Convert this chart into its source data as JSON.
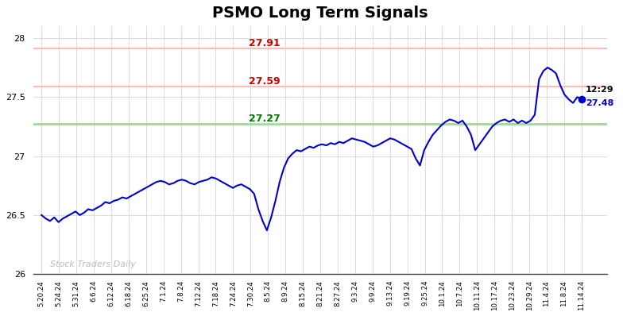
{
  "title": "PSMO Long Term Signals",
  "title_fontsize": 14,
  "title_fontweight": "bold",
  "ylim": [
    26.0,
    28.1
  ],
  "yticks": [
    26,
    26.5,
    27,
    27.5,
    28
  ],
  "hline_red1": 27.91,
  "hline_red2": 27.59,
  "hline_green": 27.27,
  "hline_red1_label": "27.91",
  "hline_red2_label": "27.59",
  "hline_green_label": "27.27",
  "hline_red_color": "#ffbbbb",
  "hline_green_color": "#99dd99",
  "annotation_red_color": "#cc0000",
  "annotation_green_color": "#007700",
  "last_time": "12:29",
  "last_value": "27.48",
  "last_value_color": "#0000cc",
  "watermark": "Stock Traders Daily",
  "watermark_color": "#bbbbbb",
  "line_color": "#0000cc",
  "line_width": 1.5,
  "dot_color": "#0000cc",
  "dot_size": 35,
  "background_color": "#ffffff",
  "grid_color": "#dddddd",
  "x_labels": [
    "5.20.24",
    "5.24.24",
    "5.31.24",
    "6.6.24",
    "6.12.24",
    "6.18.24",
    "6.25.24",
    "7.1.24",
    "7.8.24",
    "7.12.24",
    "7.18.24",
    "7.24.24",
    "7.30.24",
    "8.5.24",
    "8.9.24",
    "8.15.24",
    "8.21.24",
    "8.27.24",
    "9.3.24",
    "9.9.24",
    "9.13.24",
    "9.19.24",
    "9.25.24",
    "10.1.24",
    "10.7.24",
    "10.11.24",
    "10.17.24",
    "10.23.24",
    "10.29.24",
    "11.4.24",
    "11.8.24",
    "11.14.24"
  ],
  "y_data": [
    26.5,
    26.47,
    26.45,
    26.48,
    26.44,
    26.47,
    26.49,
    26.51,
    26.53,
    26.5,
    26.52,
    26.55,
    26.54,
    26.56,
    26.58,
    26.61,
    26.6,
    26.62,
    26.63,
    26.65,
    26.64,
    26.66,
    26.68,
    26.7,
    26.72,
    26.74,
    26.76,
    26.78,
    26.79,
    26.78,
    26.76,
    26.77,
    26.79,
    26.8,
    26.79,
    26.77,
    26.76,
    26.78,
    26.79,
    26.8,
    26.82,
    26.81,
    26.79,
    26.77,
    26.75,
    26.73,
    26.75,
    26.76,
    26.74,
    26.72,
    26.68,
    26.55,
    26.45,
    26.37,
    26.48,
    26.62,
    26.78,
    26.9,
    26.98,
    27.02,
    27.05,
    27.04,
    27.06,
    27.08,
    27.07,
    27.09,
    27.1,
    27.09,
    27.11,
    27.1,
    27.12,
    27.11,
    27.13,
    27.15,
    27.14,
    27.13,
    27.12,
    27.1,
    27.08,
    27.09,
    27.11,
    27.13,
    27.15,
    27.14,
    27.12,
    27.1,
    27.08,
    27.06,
    26.98,
    26.92,
    27.05,
    27.12,
    27.18,
    27.22,
    27.26,
    27.29,
    27.31,
    27.3,
    27.28,
    27.3,
    27.25,
    27.18,
    27.05,
    27.1,
    27.15,
    27.2,
    27.25,
    27.28,
    27.3,
    27.31,
    27.29,
    27.31,
    27.28,
    27.3,
    27.28,
    27.3,
    27.35,
    27.65,
    27.72,
    27.75,
    27.73,
    27.7,
    27.6,
    27.52,
    27.48,
    27.45,
    27.5,
    27.48
  ]
}
